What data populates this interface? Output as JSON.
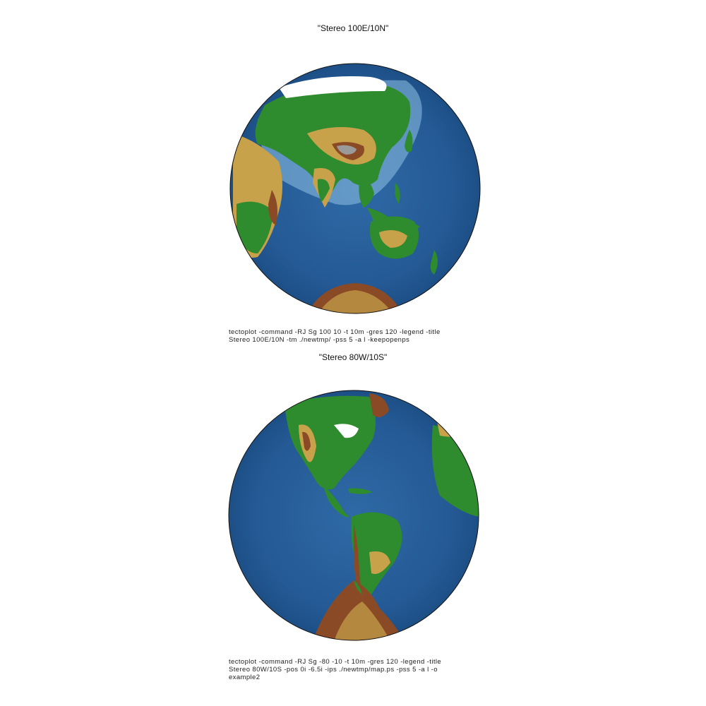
{
  "panels": [
    {
      "title": "\"Stereo 100E/10N\"",
      "projection": "Stereographic",
      "center": "100E/10N",
      "colors": {
        "ocean_deep": "#1f4e86",
        "ocean_shelf": "#8fc1e3",
        "lowland": "#2e8b2e",
        "upland": "#c8a24a",
        "highland": "#8b4a26",
        "ice": "#ffffff"
      },
      "command_lines": [
        "tectoplot -command -RJ Sg 100 10 -t 10m -gres 120 -legend -title",
        "Stereo 100E/10N -tm ./newtmp/ -pss 5 -a l -keepopenps"
      ]
    },
    {
      "title": "\"Stereo 80W/10S\"",
      "projection": "Stereographic",
      "center": "80W/10S",
      "colors": {
        "ocean_deep": "#1f4e86",
        "ocean_shelf": "#8fc1e3",
        "lowland": "#2e8b2e",
        "upland": "#c8a24a",
        "highland": "#8b4a26",
        "ice": "#ffffff"
      },
      "command_lines": [
        "tectoplot -command -RJ Sg -80 -10 -t 10m -gres 120 -legend -title",
        "Stereo 80W/10S -pos 0i -6.5i -ips ./newtmp/map.ps -pss 5 -a l -o",
        "example2"
      ]
    }
  ]
}
